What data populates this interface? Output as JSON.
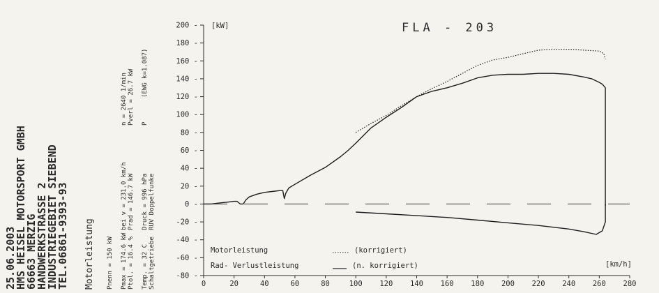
{
  "chart_data": {
    "type": "line",
    "title": "FLA - 203",
    "y_unit_label": "[kW]",
    "x_unit_label": "[km/h]",
    "xlim": [
      0,
      280
    ],
    "ylim": [
      -80,
      200
    ],
    "x_ticks": [
      "0",
      "20",
      "40",
      "60",
      "80",
      "100",
      "120",
      "140",
      "160",
      "180",
      "200",
      "220",
      "240",
      "260",
      "280"
    ],
    "y_ticks": [
      "200",
      "180",
      "160",
      "140",
      "120",
      "100",
      "80",
      "60",
      "40",
      "20",
      "0",
      "-20",
      "-40",
      "-60",
      "-80"
    ],
    "grid": false,
    "zero_line": "dashed",
    "legend": [
      {
        "label": "Motorleistung",
        "note": "(korrigiert)",
        "style": "dotted"
      },
      {
        "label": "Rad- Verlustleistung",
        "note": "(n. korrigiert)",
        "style": "solid"
      }
    ],
    "series": [
      {
        "key": "motor_corrected",
        "style": "dotted",
        "x": [
          100,
          110,
          120,
          130,
          140,
          150,
          160,
          170,
          180,
          190,
          200,
          210,
          220,
          230,
          240,
          250,
          260,
          263,
          264
        ],
        "y": [
          80,
          90,
          99,
          110,
          120,
          129,
          137,
          146,
          155,
          161,
          164,
          168,
          172,
          173,
          173,
          172,
          171,
          168,
          162
        ]
      },
      {
        "key": "wheel_power",
        "style": "solid",
        "x": [
          0,
          5,
          10,
          15,
          20,
          22,
          24,
          26,
          28,
          30,
          35,
          40,
          45,
          50,
          52,
          53,
          54,
          56,
          60,
          70,
          80,
          90,
          95,
          100,
          110,
          120,
          130,
          140,
          150,
          160,
          170,
          180,
          190,
          200,
          210,
          220,
          230,
          240,
          250,
          255,
          260,
          262,
          263,
          264,
          264,
          264
        ],
        "y": [
          0,
          0,
          1,
          2,
          3,
          3,
          0,
          0,
          5,
          8,
          11,
          13,
          14,
          15,
          15,
          6,
          12,
          18,
          22,
          32,
          41,
          53,
          60,
          68,
          85,
          97,
          108,
          120,
          126,
          130,
          135,
          141,
          144,
          145,
          145,
          146,
          146,
          145,
          142,
          140,
          136,
          134,
          132,
          130,
          60,
          -2
        ]
      },
      {
        "key": "loss_power",
        "style": "solid",
        "x": [
          100,
          120,
          140,
          160,
          180,
          200,
          220,
          240,
          250,
          258,
          262,
          264,
          264
        ],
        "y": [
          -9,
          -11,
          -13,
          -15,
          -18,
          -21,
          -24,
          -28,
          -31,
          -34,
          -30,
          -20,
          0
        ]
      }
    ]
  },
  "side_panel": {
    "date": "25.06.2003",
    "company": "HMS HEISEL MOTORSPORT GMBH",
    "postcode_city": "66663 MERZIG",
    "street": "HANDWERKSTRASSE 2",
    "district": "INDUSTRIEGEBIET SIEBEND",
    "phone": "TEL.06861-9393-93",
    "subtitle": "Motorleistung",
    "pnenn": "Pnenn = 150 kW",
    "pmax": "Pmax = 174.6 kW",
    "ptol": "Ptol. = 16.4 %",
    "temp": "Temp. = 32 C",
    "gearbox": "Schaltgetriebe",
    "bei_v": "bei v = 231.0 km/h",
    "prad": "Prad = 146.7 kW",
    "druck": "Druck = 996 hPa",
    "ruv": "RUV Doppelfunke",
    "n_label": "n = 2640 1/min",
    "pverl": "Pverl = 26.7 kW",
    "p_label": "P",
    "ewg": "(EWG k=1.087)"
  }
}
